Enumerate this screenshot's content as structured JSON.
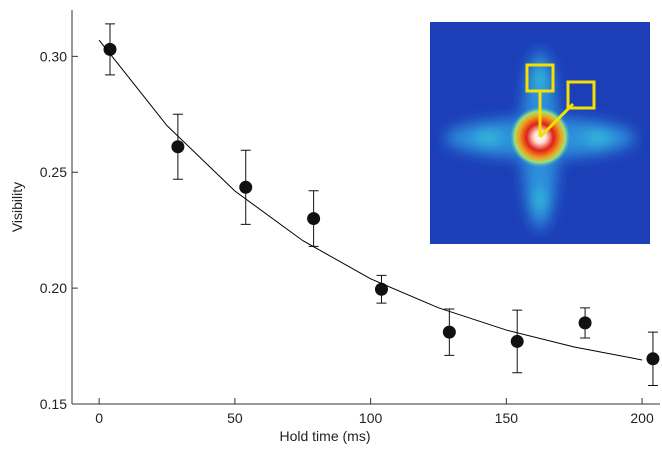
{
  "chart_data": {
    "type": "scatter",
    "xlabel": "Hold time (ms)",
    "ylabel": "Visibility",
    "xlim": [
      -10,
      206.6
    ],
    "ylim": [
      0.15,
      0.32
    ],
    "xticks": [
      0,
      50,
      100,
      150,
      200
    ],
    "yticks": [
      {
        "value": 0.15,
        "label": "0.15"
      },
      {
        "value": 0.2,
        "label": "0.20"
      },
      {
        "value": 0.25,
        "label": "0.25"
      },
      {
        "value": 0.3,
        "label": "0.30"
      }
    ],
    "series": [
      {
        "kind": "points",
        "color": "#111111",
        "x": [
          4,
          29,
          54,
          79,
          104,
          129,
          154,
          179,
          204
        ],
        "values": [
          0.303,
          0.261,
          0.2435,
          0.23,
          0.1995,
          0.181,
          0.177,
          0.185,
          0.1695
        ],
        "errors": [
          0.011,
          0.014,
          0.016,
          0.012,
          0.006,
          0.01,
          0.0135,
          0.0065,
          0.0115
        ]
      },
      {
        "kind": "line",
        "color": "#000000",
        "x": [
          0,
          25,
          50,
          75,
          100,
          125,
          150,
          175,
          200
        ],
        "values": [
          0.307,
          0.2701,
          0.2419,
          0.2205,
          0.204,
          0.1915,
          0.1819,
          0.1746,
          0.169
        ]
      }
    ]
  }
}
